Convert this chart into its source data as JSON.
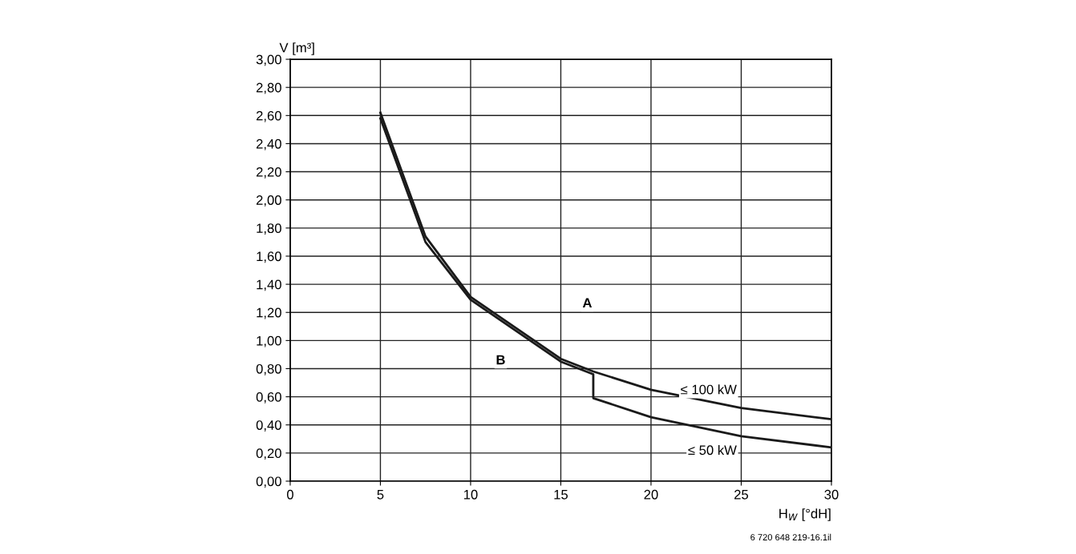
{
  "chart_data": {
    "type": "line",
    "ylabel": "V [m³]",
    "xlabel": "H$_{W}$ [°dH]",
    "xlim": [
      0,
      30
    ],
    "xticks": [
      0,
      5,
      10,
      15,
      20,
      25,
      30
    ],
    "ylim": [
      0,
      3
    ],
    "yticks": [
      {
        "value": 0,
        "label": "0,00"
      },
      {
        "value": 0.2,
        "label": "0,20"
      },
      {
        "value": 0.4,
        "label": "0,40"
      },
      {
        "value": 0.6,
        "label": "0,60"
      },
      {
        "value": 0.8,
        "label": "0,80"
      },
      {
        "value": 1.0,
        "label": "1,00"
      },
      {
        "value": 1.2,
        "label": "1,20"
      },
      {
        "value": 1.4,
        "label": "1,40"
      },
      {
        "value": 1.6,
        "label": "1,60"
      },
      {
        "value": 1.8,
        "label": "1,80"
      },
      {
        "value": 2.0,
        "label": "2,00"
      },
      {
        "value": 2.2,
        "label": "2,20"
      },
      {
        "value": 2.4,
        "label": "2,40"
      },
      {
        "value": 2.6,
        "label": "2,60"
      },
      {
        "value": 2.8,
        "label": "2,80"
      },
      {
        "value": 3.0,
        "label": "3,00"
      }
    ],
    "grid": true,
    "marker": "none",
    "line_style": "solid",
    "series": [
      {
        "name": "≤ 100 kW",
        "color": "#1a1a1a",
        "x": [
          5,
          7.5,
          10,
          15,
          16.8,
          20,
          25,
          30
        ],
        "values": [
          2.62,
          1.74,
          1.31,
          0.87,
          0.78,
          0.65,
          0.52,
          0.44
        ]
      },
      {
        "name": "≤ 50 kW",
        "color": "#1a1a1a",
        "x": [
          5,
          7.5,
          10,
          15,
          16.8,
          16.8,
          20,
          25,
          30
        ],
        "values": [
          2.58,
          1.7,
          1.29,
          0.85,
          0.76,
          0.59,
          0.455,
          0.32,
          0.24
        ]
      }
    ],
    "annotations": [
      "A",
      "B",
      "6 720 648 219-16.1il"
    ]
  }
}
